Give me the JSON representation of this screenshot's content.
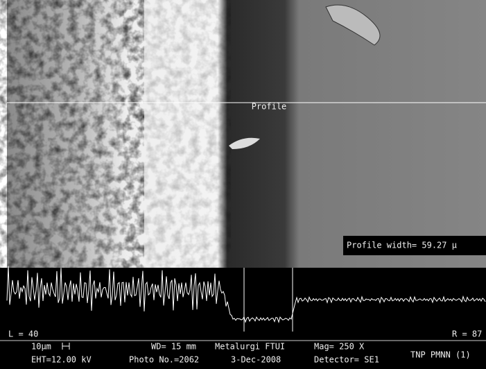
{
  "overlay": {
    "profile_label": "Profile",
    "profile_width": "Profile width= 59.27 μ"
  },
  "profile": {
    "left_cursor": "L = 40",
    "right_cursor": "R = 87"
  },
  "info": {
    "scale": "10µm",
    "wd": "WD= 15 mm",
    "lab": "Metalurgi FTUI",
    "mag": "Mag= 250 X",
    "eht": "EHT=12.00 kV",
    "photo": "Photo No.=2062",
    "date": "3-Dec-2008",
    "detector": "Detector= SE1",
    "sample": "TNP PMNN (1)"
  }
}
